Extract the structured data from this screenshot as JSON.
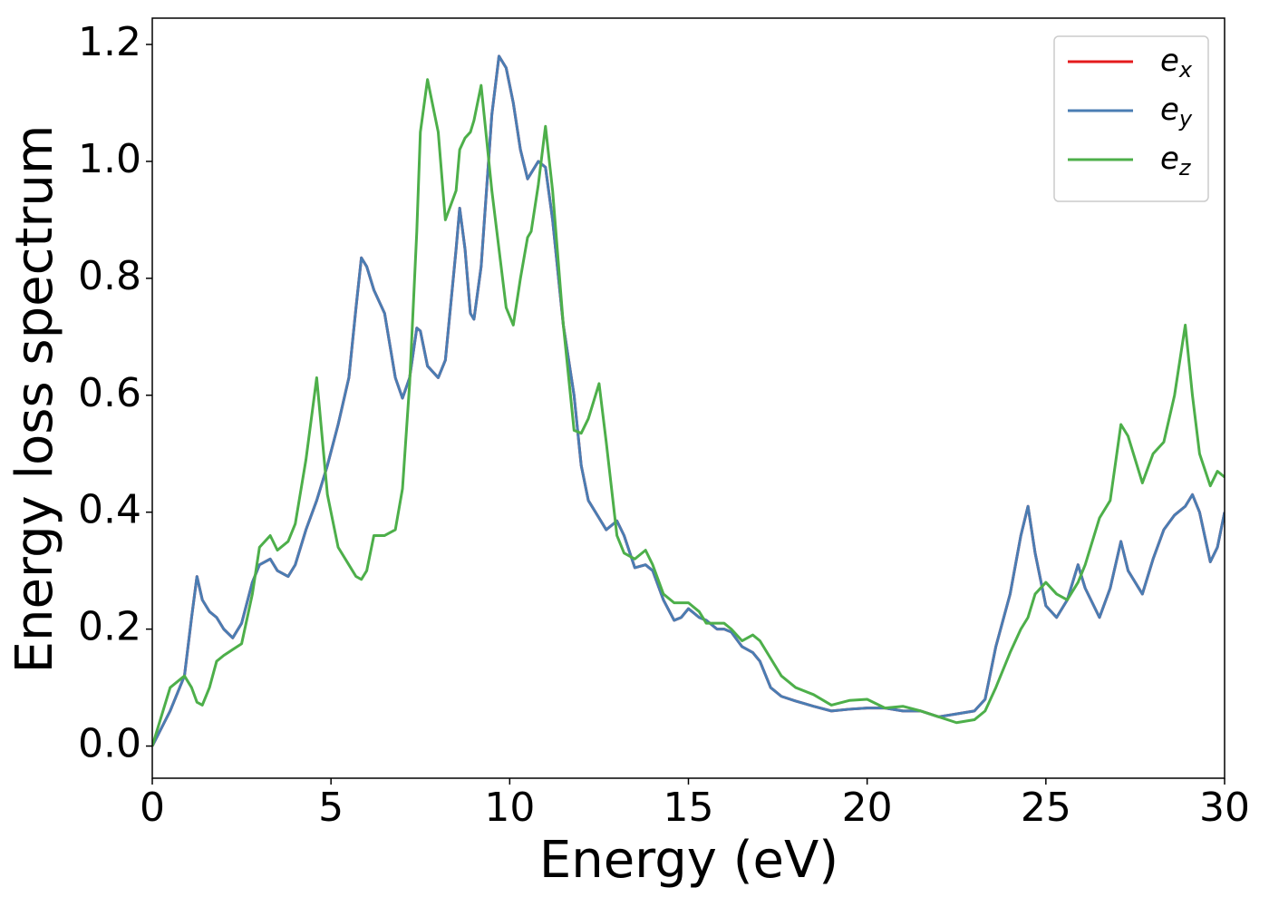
{
  "chart_data": {
    "type": "line",
    "xlabel": "Energy (eV)",
    "ylabel": "Energy loss spectrum",
    "x": [
      0,
      0.5,
      0.9,
      1.1,
      1.25,
      1.4,
      1.6,
      1.8,
      2.0,
      2.25,
      2.5,
      2.8,
      3.0,
      3.3,
      3.5,
      3.8,
      4.0,
      4.3,
      4.6,
      4.9,
      5.2,
      5.5,
      5.7,
      5.85,
      6.0,
      6.2,
      6.5,
      6.8,
      7.0,
      7.2,
      7.4,
      7.5,
      7.7,
      8.0,
      8.2,
      8.5,
      8.6,
      8.75,
      8.9,
      9.0,
      9.2,
      9.5,
      9.7,
      9.9,
      10.1,
      10.3,
      10.5,
      10.6,
      10.8,
      11.0,
      11.2,
      11.5,
      11.8,
      12.0,
      12.2,
      12.5,
      12.7,
      13.0,
      13.2,
      13.5,
      13.8,
      14.0,
      14.3,
      14.6,
      14.8,
      15.0,
      15.3,
      15.5,
      15.8,
      16.0,
      16.2,
      16.5,
      16.8,
      17.0,
      17.3,
      17.6,
      18.0,
      18.5,
      19.0,
      19.5,
      20.0,
      20.5,
      21.0,
      21.5,
      22.0,
      22.5,
      23.0,
      23.3,
      23.6,
      24.0,
      24.3,
      24.5,
      24.7,
      25.0,
      25.3,
      25.6,
      25.9,
      26.1,
      26.5,
      26.8,
      27.1,
      27.3,
      27.7,
      28.0,
      28.3,
      28.6,
      28.9,
      29.1,
      29.3,
      29.6,
      29.8,
      30.0
    ],
    "series": [
      {
        "name": "ex",
        "color": "#e41a1c",
        "values": [
          0,
          0.06,
          0.12,
          0.22,
          0.29,
          0.25,
          0.23,
          0.22,
          0.2,
          0.185,
          0.21,
          0.28,
          0.31,
          0.32,
          0.3,
          0.29,
          0.31,
          0.37,
          0.42,
          0.48,
          0.55,
          0.63,
          0.75,
          0.835,
          0.82,
          0.78,
          0.74,
          0.63,
          0.595,
          0.63,
          0.715,
          0.71,
          0.65,
          0.63,
          0.66,
          0.85,
          0.92,
          0.85,
          0.74,
          0.73,
          0.82,
          1.08,
          1.18,
          1.16,
          1.1,
          1.02,
          0.97,
          0.98,
          1.0,
          0.99,
          0.9,
          0.72,
          0.6,
          0.48,
          0.42,
          0.39,
          0.37,
          0.385,
          0.36,
          0.305,
          0.31,
          0.3,
          0.25,
          0.215,
          0.22,
          0.235,
          0.22,
          0.215,
          0.2,
          0.2,
          0.195,
          0.17,
          0.16,
          0.145,
          0.1,
          0.085,
          0.077,
          0.068,
          0.06,
          0.063,
          0.065,
          0.065,
          0.06,
          0.06,
          0.05,
          0.055,
          0.06,
          0.08,
          0.17,
          0.26,
          0.36,
          0.41,
          0.33,
          0.24,
          0.22,
          0.25,
          0.31,
          0.27,
          0.22,
          0.27,
          0.35,
          0.3,
          0.26,
          0.32,
          0.37,
          0.395,
          0.41,
          0.43,
          0.4,
          0.315,
          0.34,
          0.4
        ]
      },
      {
        "name": "ey",
        "color": "#4a7db3",
        "values": [
          0,
          0.06,
          0.12,
          0.22,
          0.29,
          0.25,
          0.23,
          0.22,
          0.2,
          0.185,
          0.21,
          0.28,
          0.31,
          0.32,
          0.3,
          0.29,
          0.31,
          0.37,
          0.42,
          0.48,
          0.55,
          0.63,
          0.75,
          0.835,
          0.82,
          0.78,
          0.74,
          0.63,
          0.595,
          0.63,
          0.715,
          0.71,
          0.65,
          0.63,
          0.66,
          0.85,
          0.92,
          0.85,
          0.74,
          0.73,
          0.82,
          1.08,
          1.18,
          1.16,
          1.1,
          1.02,
          0.97,
          0.98,
          1.0,
          0.99,
          0.9,
          0.72,
          0.6,
          0.48,
          0.42,
          0.39,
          0.37,
          0.385,
          0.36,
          0.305,
          0.31,
          0.3,
          0.25,
          0.215,
          0.22,
          0.235,
          0.22,
          0.215,
          0.2,
          0.2,
          0.195,
          0.17,
          0.16,
          0.145,
          0.1,
          0.085,
          0.077,
          0.068,
          0.06,
          0.063,
          0.065,
          0.065,
          0.06,
          0.06,
          0.05,
          0.055,
          0.06,
          0.08,
          0.17,
          0.26,
          0.36,
          0.41,
          0.33,
          0.24,
          0.22,
          0.25,
          0.31,
          0.27,
          0.22,
          0.27,
          0.35,
          0.3,
          0.26,
          0.32,
          0.37,
          0.395,
          0.41,
          0.43,
          0.4,
          0.315,
          0.34,
          0.4
        ]
      },
      {
        "name": "ez",
        "color": "#4daf4a",
        "values": [
          0,
          0.1,
          0.12,
          0.1,
          0.075,
          0.07,
          0.1,
          0.145,
          0.155,
          0.165,
          0.175,
          0.26,
          0.34,
          0.36,
          0.335,
          0.35,
          0.38,
          0.49,
          0.63,
          0.43,
          0.34,
          0.31,
          0.29,
          0.285,
          0.3,
          0.36,
          0.36,
          0.37,
          0.44,
          0.62,
          0.88,
          1.05,
          1.14,
          1.05,
          0.9,
          0.95,
          1.02,
          1.04,
          1.05,
          1.07,
          1.13,
          0.95,
          0.85,
          0.75,
          0.72,
          0.8,
          0.87,
          0.88,
          0.96,
          1.06,
          0.95,
          0.72,
          0.54,
          0.535,
          0.56,
          0.62,
          0.52,
          0.36,
          0.33,
          0.32,
          0.335,
          0.31,
          0.26,
          0.245,
          0.245,
          0.245,
          0.23,
          0.21,
          0.21,
          0.21,
          0.2,
          0.18,
          0.19,
          0.18,
          0.15,
          0.12,
          0.1,
          0.088,
          0.07,
          0.078,
          0.08,
          0.065,
          0.068,
          0.06,
          0.05,
          0.04,
          0.045,
          0.06,
          0.1,
          0.16,
          0.2,
          0.22,
          0.26,
          0.28,
          0.26,
          0.25,
          0.28,
          0.31,
          0.39,
          0.42,
          0.55,
          0.53,
          0.45,
          0.5,
          0.52,
          0.6,
          0.72,
          0.6,
          0.5,
          0.445,
          0.47,
          0.46
        ]
      }
    ],
    "xlim": [
      0,
      30
    ],
    "xticks": [
      0,
      5,
      10,
      15,
      20,
      25,
      30
    ],
    "ylim": [
      -0.055,
      1.245
    ],
    "yticks": [
      {
        "value": 0,
        "label": "0.0"
      },
      0.2,
      0.4,
      0.6,
      0.8,
      {
        "value": 1,
        "label": "1.0"
      },
      1.2
    ],
    "grid": false,
    "legend": "upper right"
  }
}
